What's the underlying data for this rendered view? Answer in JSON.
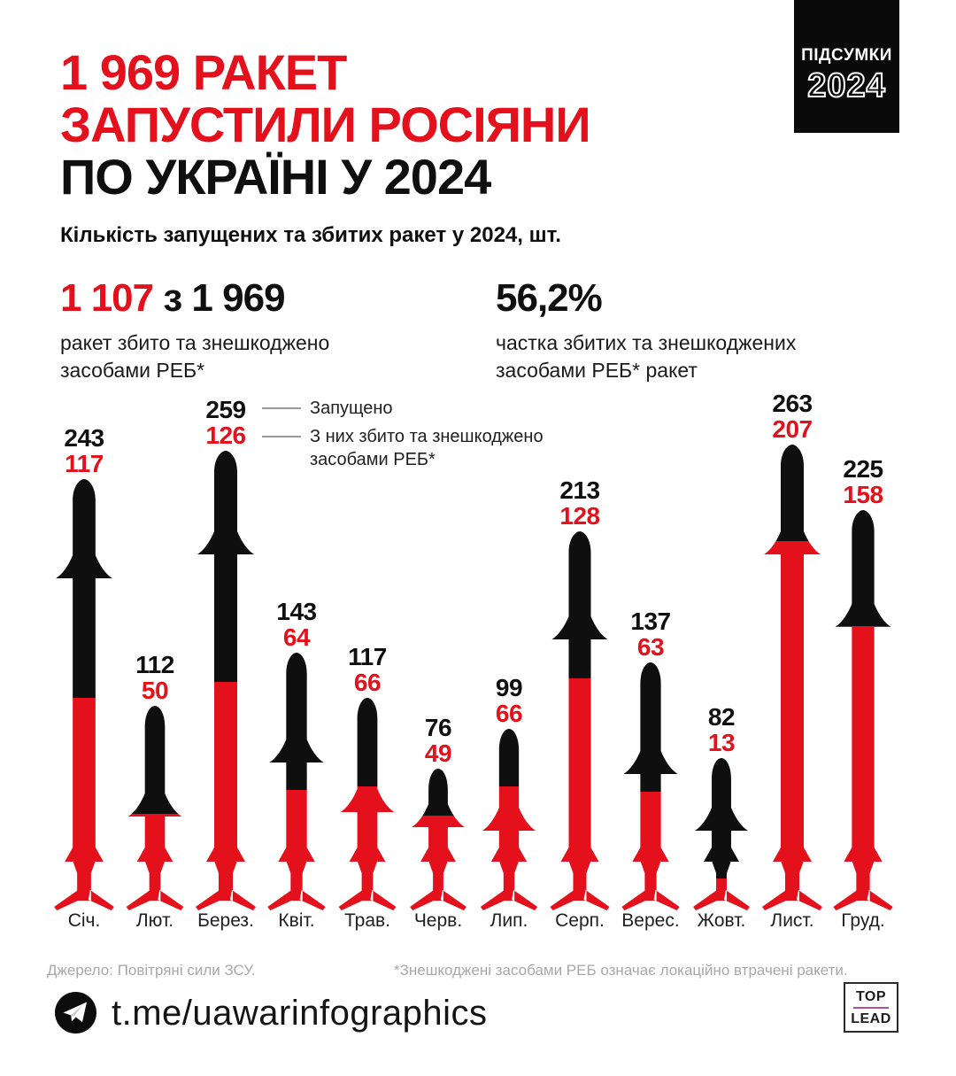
{
  "colors": {
    "red": "#e4101c",
    "black": "#0f0f0f",
    "badge_bg": "#0a0a0a",
    "footnote_gray": "#a8a8a8",
    "leader_line": "#9a9a9a",
    "logo_accent": "#b0509c"
  },
  "badge": {
    "line1": "ПІДСУМКИ",
    "line2": "2024"
  },
  "title": {
    "line1": "1 969 РАКЕТ",
    "line2": "ЗАПУСТИЛИ РОСІЯНИ",
    "line3": "ПО УКРАЇНІ У 2024"
  },
  "subtitle": "Кількість запущених та збитих ракет у 2024, шт.",
  "stats": {
    "left": {
      "value_red": "1 107",
      "value_black": " з 1 969",
      "desc_line1": "ракет збито та знешкоджено",
      "desc_line2": "засобами РЕБ*"
    },
    "right": {
      "value": "56,2%",
      "desc_line1": "частка збитих та знешкоджених",
      "desc_line2": "засобами РЕБ* ракет"
    }
  },
  "legend": {
    "launched_label": "Запущено",
    "downed_label_line1": "З них збито та знешкоджено",
    "downed_label_line2": "засобами РЕБ*"
  },
  "chart_data": {
    "type": "bar",
    "subtype": "pictorial-rocket-columns",
    "title": "Кількість запущених та збитих ракет у 2024, шт.",
    "categories": [
      "Січ.",
      "Лют.",
      "Берез.",
      "Квіт.",
      "Трав.",
      "Черв.",
      "Лип.",
      "Серп.",
      "Верес.",
      "Жовт.",
      "Лист.",
      "Груд."
    ],
    "series": [
      {
        "name": "Запущено",
        "color": "#0f0f0f",
        "values": [
          243,
          112,
          259,
          143,
          117,
          76,
          99,
          213,
          137,
          82,
          263,
          225
        ]
      },
      {
        "name": "З них збито та знешкоджено засобами РЕБ*",
        "color": "#e4101c",
        "values": [
          117,
          50,
          126,
          64,
          66,
          49,
          66,
          128,
          63,
          13,
          207,
          158
        ]
      }
    ],
    "totals": {
      "launched": 1969,
      "downed": 1107,
      "downed_share": "56,2%"
    },
    "ylim": [
      0,
      270
    ],
    "grid": false,
    "legend_position": "attached-to-third-column",
    "fin_fracs": [
      0.18,
      0.45,
      0.18,
      0.35,
      0.45,
      0.27,
      0.46,
      0.23,
      0.37,
      0.35,
      0.19,
      0.24
    ]
  },
  "footer": {
    "source": "Джерело: Повітряні сили ЗСУ.",
    "note": "*Знешкоджені засобами РЕБ означає локаційно втрачені ракети."
  },
  "bottombar": {
    "channel": "t.me/uawarinfographics",
    "logo_top": "TOP",
    "logo_bottom": "LEAD"
  }
}
